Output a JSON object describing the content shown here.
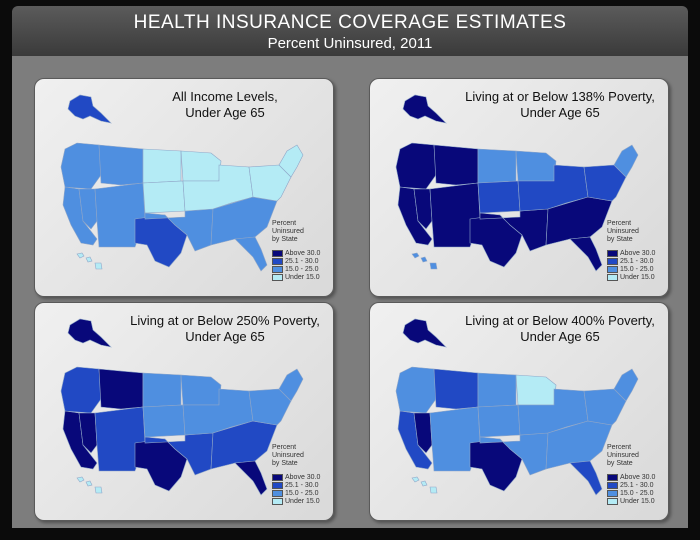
{
  "header": {
    "title": "HEALTH INSURANCE COVERAGE ESTIMATES",
    "subtitle": "Percent Uninsured, 2011"
  },
  "legend": {
    "title_lines": [
      "Percent",
      "Uninsured",
      "by State"
    ],
    "classes": [
      {
        "label": "Above 30.0",
        "color": "#08087a"
      },
      {
        "label": "25.1 - 30.0",
        "color": "#2149c4"
      },
      {
        "label": "15.0 - 25.0",
        "color": "#4f8fe0"
      },
      {
        "label": "Under 15.0",
        "color": "#b4ebf5"
      }
    ]
  },
  "panels": [
    {
      "title_line1": "All Income Levels,",
      "title_line2": "Under Age 65",
      "regions": {
        "alaska": "#2149c4",
        "northwest": "#4f8fe0",
        "mountain_north": "#4f8fe0",
        "california": "#4f8fe0",
        "nevada": "#4f8fe0",
        "southwest": "#4f8fe0",
        "northern_plains": "#b4ebf5",
        "central_plains": "#b4ebf5",
        "texas": "#2149c4",
        "south_central": "#4f8fe0",
        "upper_midwest": "#b4ebf5",
        "midwest": "#b4ebf5",
        "southeast": "#4f8fe0",
        "florida": "#4f8fe0",
        "atlantic": "#b4ebf5",
        "northeast": "#b4ebf5",
        "hawaii": "#b4ebf5"
      }
    },
    {
      "title_line1": "Living at or Below 138% Poverty,",
      "title_line2": "Under Age 65",
      "regions": {
        "alaska": "#08087a",
        "northwest": "#08087a",
        "mountain_north": "#08087a",
        "california": "#08087a",
        "nevada": "#08087a",
        "southwest": "#08087a",
        "northern_plains": "#4f8fe0",
        "central_plains": "#2149c4",
        "texas": "#08087a",
        "south_central": "#08087a",
        "upper_midwest": "#4f8fe0",
        "midwest": "#2149c4",
        "southeast": "#08087a",
        "florida": "#08087a",
        "atlantic": "#2149c4",
        "northeast": "#4f8fe0",
        "hawaii": "#4f8fe0"
      }
    },
    {
      "title_line1": "Living at or Below 250% Poverty,",
      "title_line2": "Under Age 65",
      "regions": {
        "alaska": "#08087a",
        "northwest": "#2149c4",
        "mountain_north": "#08087a",
        "california": "#08087a",
        "nevada": "#08087a",
        "southwest": "#2149c4",
        "northern_plains": "#4f8fe0",
        "central_plains": "#4f8fe0",
        "texas": "#08087a",
        "south_central": "#2149c4",
        "upper_midwest": "#4f8fe0",
        "midwest": "#4f8fe0",
        "southeast": "#2149c4",
        "florida": "#08087a",
        "atlantic": "#4f8fe0",
        "northeast": "#4f8fe0",
        "hawaii": "#b4ebf5"
      }
    },
    {
      "title_line1": "Living at or Below 400% Poverty,",
      "title_line2": "Under Age 65",
      "regions": {
        "alaska": "#08087a",
        "northwest": "#4f8fe0",
        "mountain_north": "#2149c4",
        "california": "#2149c4",
        "nevada": "#08087a",
        "southwest": "#4f8fe0",
        "northern_plains": "#4f8fe0",
        "central_plains": "#4f8fe0",
        "texas": "#08087a",
        "south_central": "#4f8fe0",
        "upper_midwest": "#b4ebf5",
        "midwest": "#4f8fe0",
        "southeast": "#4f8fe0",
        "florida": "#2149c4",
        "atlantic": "#4f8fe0",
        "northeast": "#4f8fe0",
        "hawaii": "#b4ebf5"
      }
    }
  ]
}
